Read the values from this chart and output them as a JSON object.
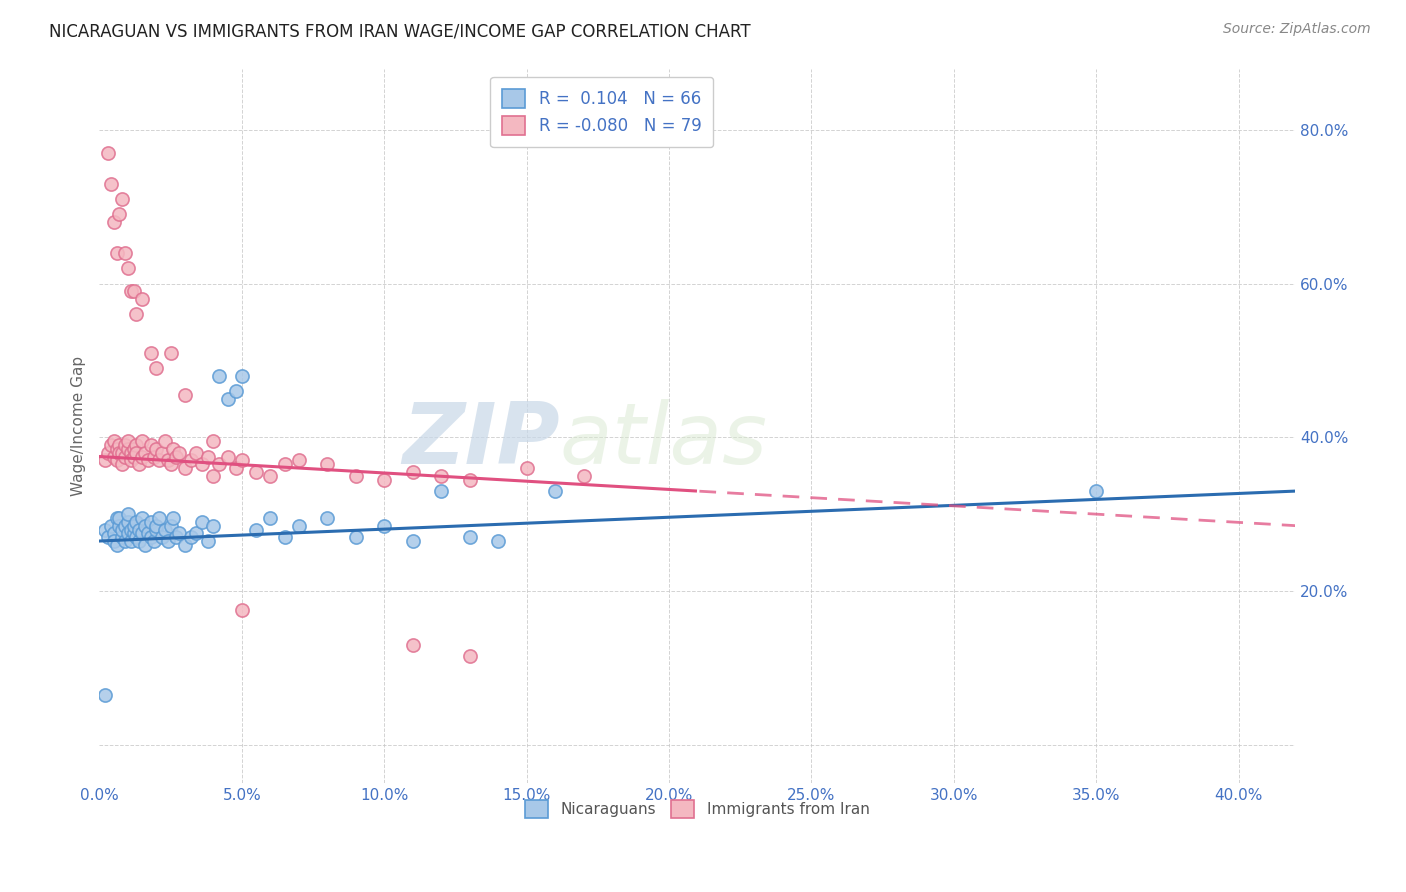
{
  "title": "NICARAGUAN VS IMMIGRANTS FROM IRAN WAGE/INCOME GAP CORRELATION CHART",
  "source": "Source: ZipAtlas.com",
  "ylabel": "Wage/Income Gap",
  "xlim": [
    0.0,
    0.42
  ],
  "ylim": [
    -0.05,
    0.88
  ],
  "ytick_positions": [
    0.0,
    0.2,
    0.4,
    0.6,
    0.8
  ],
  "ytick_labels": [
    "",
    "20.0%",
    "40.0%",
    "60.0%",
    "80.0%"
  ],
  "xtick_positions": [
    0.0,
    0.05,
    0.1,
    0.15,
    0.2,
    0.25,
    0.3,
    0.35,
    0.4
  ],
  "xtick_labels": [
    "0.0%",
    "5.0%",
    "10.0%",
    "15.0%",
    "20.0%",
    "25.0%",
    "30.0%",
    "35.0%",
    "40.0%"
  ],
  "legend_r_blue": " 0.104",
  "legend_n_blue": "66",
  "legend_r_pink": "-0.080",
  "legend_n_pink": "79",
  "blue_dot_face": "#a8c8e8",
  "blue_dot_edge": "#5b9bd5",
  "pink_dot_face": "#f4b8c1",
  "pink_dot_edge": "#e07090",
  "blue_line_color": "#2b6cb0",
  "pink_line_color": "#e05080",
  "watermark_zip": "ZIP",
  "watermark_atlas": "atlas",
  "watermark_color": "#d0dce8",
  "blue_scatter_x": [
    0.002,
    0.003,
    0.004,
    0.005,
    0.005,
    0.006,
    0.006,
    0.007,
    0.007,
    0.008,
    0.008,
    0.009,
    0.009,
    0.01,
    0.01,
    0.01,
    0.011,
    0.011,
    0.012,
    0.012,
    0.013,
    0.013,
    0.014,
    0.014,
    0.015,
    0.015,
    0.016,
    0.016,
    0.017,
    0.018,
    0.018,
    0.019,
    0.02,
    0.02,
    0.021,
    0.022,
    0.023,
    0.024,
    0.025,
    0.026,
    0.027,
    0.028,
    0.03,
    0.032,
    0.034,
    0.036,
    0.038,
    0.04,
    0.042,
    0.045,
    0.048,
    0.05,
    0.055,
    0.06,
    0.065,
    0.07,
    0.08,
    0.09,
    0.1,
    0.11,
    0.12,
    0.13,
    0.14,
    0.16,
    0.35,
    0.002
  ],
  "blue_scatter_y": [
    0.28,
    0.27,
    0.285,
    0.275,
    0.265,
    0.295,
    0.26,
    0.285,
    0.295,
    0.27,
    0.28,
    0.265,
    0.285,
    0.275,
    0.29,
    0.3,
    0.265,
    0.28,
    0.275,
    0.285,
    0.27,
    0.29,
    0.265,
    0.28,
    0.275,
    0.295,
    0.26,
    0.285,
    0.275,
    0.27,
    0.29,
    0.265,
    0.28,
    0.285,
    0.295,
    0.27,
    0.28,
    0.265,
    0.285,
    0.295,
    0.27,
    0.275,
    0.26,
    0.27,
    0.275,
    0.29,
    0.265,
    0.285,
    0.48,
    0.45,
    0.46,
    0.48,
    0.28,
    0.295,
    0.27,
    0.285,
    0.295,
    0.27,
    0.285,
    0.265,
    0.33,
    0.27,
    0.265,
    0.33,
    0.33,
    0.065
  ],
  "pink_scatter_x": [
    0.002,
    0.003,
    0.004,
    0.005,
    0.005,
    0.006,
    0.006,
    0.007,
    0.007,
    0.008,
    0.008,
    0.009,
    0.009,
    0.01,
    0.01,
    0.011,
    0.011,
    0.012,
    0.012,
    0.013,
    0.013,
    0.014,
    0.015,
    0.015,
    0.016,
    0.017,
    0.018,
    0.019,
    0.02,
    0.021,
    0.022,
    0.023,
    0.024,
    0.025,
    0.026,
    0.027,
    0.028,
    0.03,
    0.032,
    0.034,
    0.036,
    0.038,
    0.04,
    0.042,
    0.045,
    0.048,
    0.05,
    0.055,
    0.06,
    0.065,
    0.07,
    0.08,
    0.09,
    0.1,
    0.11,
    0.12,
    0.13,
    0.15,
    0.17,
    0.003,
    0.004,
    0.005,
    0.006,
    0.007,
    0.008,
    0.009,
    0.01,
    0.011,
    0.012,
    0.013,
    0.015,
    0.018,
    0.02,
    0.025,
    0.03,
    0.04,
    0.05,
    0.11,
    0.13
  ],
  "pink_scatter_y": [
    0.37,
    0.38,
    0.39,
    0.375,
    0.395,
    0.385,
    0.37,
    0.39,
    0.38,
    0.365,
    0.38,
    0.39,
    0.375,
    0.385,
    0.395,
    0.38,
    0.37,
    0.385,
    0.375,
    0.39,
    0.38,
    0.365,
    0.375,
    0.395,
    0.38,
    0.37,
    0.39,
    0.375,
    0.385,
    0.37,
    0.38,
    0.395,
    0.37,
    0.365,
    0.385,
    0.375,
    0.38,
    0.36,
    0.37,
    0.38,
    0.365,
    0.375,
    0.35,
    0.365,
    0.375,
    0.36,
    0.37,
    0.355,
    0.35,
    0.365,
    0.37,
    0.365,
    0.35,
    0.345,
    0.355,
    0.35,
    0.345,
    0.36,
    0.35,
    0.77,
    0.73,
    0.68,
    0.64,
    0.69,
    0.71,
    0.64,
    0.62,
    0.59,
    0.59,
    0.56,
    0.58,
    0.51,
    0.49,
    0.51,
    0.455,
    0.395,
    0.175,
    0.13,
    0.115
  ]
}
